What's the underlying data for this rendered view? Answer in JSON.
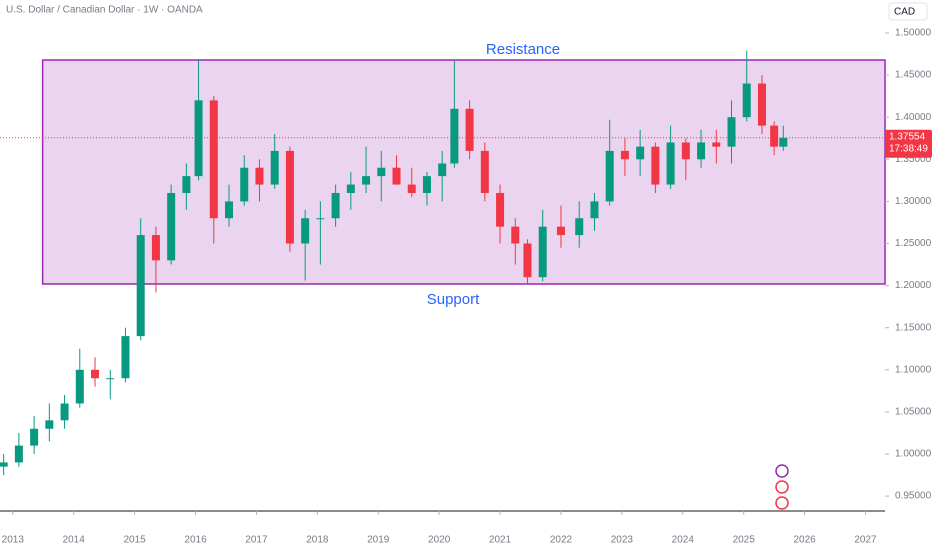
{
  "chart_data": {
    "type": "candlestick",
    "title": "U.S. Dollar / Canadian Dollar · 1W · OANDA",
    "currency": "CAD",
    "x": [
      2012.85,
      2013.1,
      2013.35,
      2013.6,
      2013.85,
      2014.1,
      2014.35,
      2014.6,
      2014.85,
      2015.1,
      2015.35,
      2015.6,
      2015.85,
      2016.05,
      2016.3,
      2016.55,
      2016.8,
      2017.05,
      2017.3,
      2017.55,
      2017.8,
      2018.05,
      2018.3,
      2018.55,
      2018.8,
      2019.05,
      2019.3,
      2019.55,
      2019.8,
      2020.05,
      2020.25,
      2020.5,
      2020.75,
      2021.0,
      2021.25,
      2021.45,
      2021.7,
      2022.0,
      2022.3,
      2022.55,
      2022.8,
      2023.05,
      2023.3,
      2023.55,
      2023.8,
      2024.05,
      2024.3,
      2024.55,
      2024.8,
      2025.05,
      2025.3,
      2025.5,
      2025.65
    ],
    "open": [
      0.985,
      0.99,
      1.01,
      1.03,
      1.04,
      1.06,
      1.1,
      1.09,
      1.09,
      1.14,
      1.26,
      1.23,
      1.31,
      1.33,
      1.42,
      1.28,
      1.3,
      1.34,
      1.32,
      1.36,
      1.25,
      1.28,
      1.28,
      1.31,
      1.32,
      1.33,
      1.34,
      1.32,
      1.31,
      1.33,
      1.345,
      1.41,
      1.36,
      1.31,
      1.27,
      1.25,
      1.21,
      1.27,
      1.26,
      1.28,
      1.3,
      1.36,
      1.35,
      1.365,
      1.32,
      1.37,
      1.35,
      1.37,
      1.365,
      1.4,
      1.44,
      1.39,
      1.365
    ],
    "high": [
      1.0,
      1.025,
      1.045,
      1.06,
      1.07,
      1.125,
      1.115,
      1.1,
      1.15,
      1.28,
      1.27,
      1.32,
      1.345,
      1.469,
      1.425,
      1.32,
      1.355,
      1.35,
      1.38,
      1.365,
      1.29,
      1.3,
      1.32,
      1.335,
      1.365,
      1.36,
      1.355,
      1.34,
      1.335,
      1.36,
      1.467,
      1.42,
      1.37,
      1.32,
      1.28,
      1.255,
      1.29,
      1.295,
      1.3,
      1.31,
      1.397,
      1.375,
      1.385,
      1.37,
      1.39,
      1.375,
      1.385,
      1.385,
      1.42,
      1.479,
      1.45,
      1.395,
      1.39
    ],
    "low": [
      0.975,
      0.985,
      1.0,
      1.015,
      1.03,
      1.055,
      1.08,
      1.065,
      1.085,
      1.135,
      1.192,
      1.225,
      1.29,
      1.325,
      1.25,
      1.27,
      1.295,
      1.3,
      1.315,
      1.24,
      1.206,
      1.225,
      1.27,
      1.29,
      1.31,
      1.3,
      1.32,
      1.305,
      1.295,
      1.3,
      1.34,
      1.35,
      1.3,
      1.25,
      1.225,
      1.201,
      1.205,
      1.245,
      1.245,
      1.265,
      1.295,
      1.33,
      1.33,
      1.31,
      1.315,
      1.325,
      1.34,
      1.345,
      1.345,
      1.395,
      1.38,
      1.355,
      1.36
    ],
    "close": [
      0.99,
      1.01,
      1.03,
      1.04,
      1.06,
      1.1,
      1.09,
      1.09,
      1.14,
      1.26,
      1.23,
      1.31,
      1.33,
      1.42,
      1.28,
      1.3,
      1.34,
      1.32,
      1.36,
      1.25,
      1.28,
      1.28,
      1.31,
      1.32,
      1.33,
      1.34,
      1.32,
      1.31,
      1.33,
      1.345,
      1.41,
      1.36,
      1.31,
      1.27,
      1.25,
      1.21,
      1.27,
      1.26,
      1.28,
      1.3,
      1.36,
      1.35,
      1.365,
      1.32,
      1.37,
      1.35,
      1.37,
      1.365,
      1.4,
      1.44,
      1.39,
      1.365,
      1.37554
    ],
    "up_color": "#089981",
    "down_color": "#f23645",
    "last_price": {
      "value": 1.37554,
      "label": "1.37554",
      "countdown": "17:38:49"
    },
    "range": {
      "top": 1.4679,
      "bottom": 1.2019,
      "x_start": 2013.49,
      "color": "#9c27b0",
      "fill": "rgba(156,39,176,0.2)",
      "top_label": "Resistance",
      "bottom_label": "Support",
      "label_color": "#2962ff"
    },
    "xlim": [
      2012.79,
      2027.32
    ],
    "xticks": [
      2013,
      2014,
      2015,
      2016,
      2017,
      2018,
      2019,
      2020,
      2021,
      2022,
      2023,
      2024,
      2025,
      2026,
      2027
    ],
    "ylim": [
      0.9323,
      1.5392
    ],
    "yticks": [
      {
        "value": 0.95,
        "label": "0.95000"
      },
      {
        "value": 1.0,
        "label": "1.00000"
      },
      {
        "value": 1.05,
        "label": "1.05000"
      },
      {
        "value": 1.1,
        "label": "1.10000"
      },
      {
        "value": 1.15,
        "label": "1.15000"
      },
      {
        "value": 1.2,
        "label": "1.20000"
      },
      {
        "value": 1.25,
        "label": "1.25000"
      },
      {
        "value": 1.3,
        "label": "1.30000"
      },
      {
        "value": 1.35,
        "label": "1.35000"
      },
      {
        "value": 1.4,
        "label": "1.40000"
      },
      {
        "value": 1.45,
        "label": "1.45000"
      },
      {
        "value": 1.5,
        "label": "1.50000"
      }
    ]
  }
}
